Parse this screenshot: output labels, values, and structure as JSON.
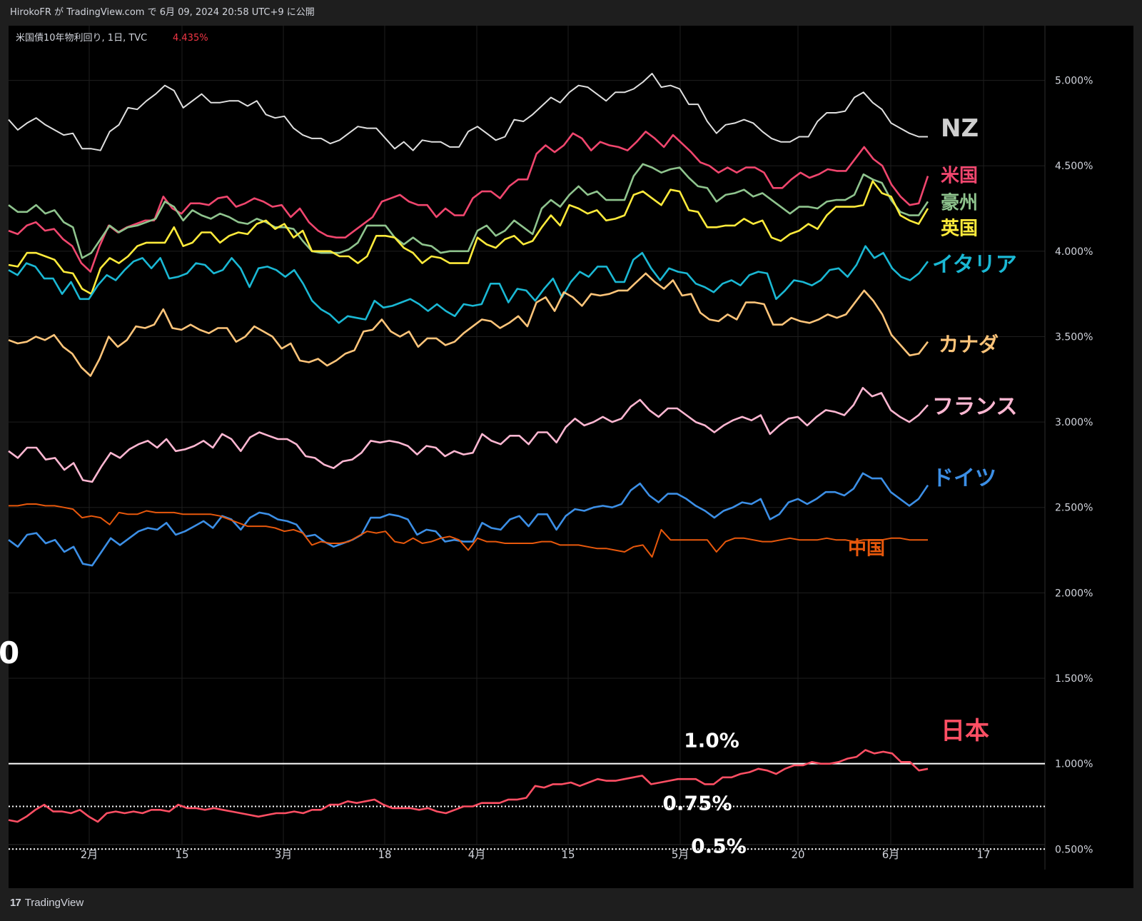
{
  "header": {
    "publisher_line": "HirokoFR が TradingView.com で 6月 09, 2024 20:58 UTC+9 に公開"
  },
  "chart_info": {
    "symbol_text": "米国債10年物利回り, 1日, TVC",
    "last_value": "4.435%"
  },
  "brand": {
    "logo": "17",
    "name": "TradingView"
  },
  "colors": {
    "background": "#000000",
    "grid": "#1f1f1f",
    "axis_text": "#d1d4dc"
  },
  "chart_data": {
    "type": "line",
    "ylim": [
      0.38,
      5.32
    ],
    "y_ticks": [
      "5.000%",
      "4.500%",
      "4.000%",
      "3.500%",
      "3.000%",
      "2.500%",
      "2.000%",
      "1.500%",
      "1.000%",
      "0.500%"
    ],
    "x_ticks": [
      "2月",
      "15",
      "3月",
      "18",
      "4月",
      "15",
      "5月",
      "20",
      "6月",
      "17"
    ],
    "reference_lines": [
      {
        "value": 1.0,
        "label": "1.0%",
        "style": "solid"
      },
      {
        "value": 0.75,
        "label": "0.75%",
        "style": "dotted"
      },
      {
        "value": 0.5,
        "label": "0.5%",
        "style": "dotted"
      }
    ],
    "left_edge_text": "0",
    "series": [
      {
        "name": "NZ",
        "color": "#e0e0e0",
        "label_color": "#cfcfcf",
        "values": [
          4.77,
          4.71,
          4.75,
          4.78,
          4.74,
          4.71,
          4.68,
          4.69,
          4.6,
          4.6,
          4.59,
          4.7,
          4.74,
          4.84,
          4.83,
          4.88,
          4.92,
          4.97,
          4.94,
          4.84,
          4.88,
          4.92,
          4.87,
          4.87,
          4.88,
          4.88,
          4.85,
          4.88,
          4.8,
          4.78,
          4.79,
          4.72,
          4.68,
          4.66,
          4.66,
          4.63,
          4.65,
          4.69,
          4.73,
          4.72,
          4.72,
          4.66,
          4.6,
          4.64,
          4.59,
          4.65,
          4.64,
          4.64,
          4.61,
          4.61,
          4.7,
          4.73,
          4.69,
          4.65,
          4.67,
          4.77,
          4.76,
          4.8,
          4.85,
          4.9,
          4.87,
          4.93,
          4.97,
          4.96,
          4.92,
          4.88,
          4.93,
          4.93,
          4.95,
          4.99,
          5.04,
          4.96,
          4.97,
          4.95,
          4.86,
          4.86,
          4.76,
          4.69,
          4.74,
          4.75,
          4.77,
          4.75,
          4.7,
          4.66,
          4.64,
          4.64,
          4.67,
          4.67,
          4.76,
          4.81,
          4.81,
          4.82,
          4.9,
          4.93,
          4.87,
          4.83,
          4.75,
          4.72,
          4.69,
          4.67,
          4.67
        ]
      },
      {
        "name": "米国",
        "color": "#f0466e",
        "label_color": "#f0466e",
        "values": [
          4.12,
          4.1,
          4.15,
          4.17,
          4.12,
          4.13,
          4.07,
          4.03,
          3.93,
          3.88,
          4.03,
          4.15,
          4.11,
          4.14,
          4.16,
          4.18,
          4.18,
          4.32,
          4.25,
          4.22,
          4.28,
          4.28,
          4.27,
          4.31,
          4.32,
          4.26,
          4.28,
          4.31,
          4.29,
          4.26,
          4.27,
          4.2,
          4.25,
          4.17,
          4.12,
          4.09,
          4.08,
          4.08,
          4.12,
          4.16,
          4.2,
          4.29,
          4.31,
          4.33,
          4.29,
          4.27,
          4.27,
          4.2,
          4.25,
          4.21,
          4.21,
          4.31,
          4.35,
          4.35,
          4.31,
          4.38,
          4.42,
          4.42,
          4.57,
          4.62,
          4.58,
          4.62,
          4.69,
          4.66,
          4.59,
          4.64,
          4.62,
          4.61,
          4.59,
          4.64,
          4.7,
          4.66,
          4.61,
          4.68,
          4.63,
          4.58,
          4.52,
          4.5,
          4.46,
          4.49,
          4.46,
          4.49,
          4.49,
          4.46,
          4.37,
          4.37,
          4.42,
          4.46,
          4.43,
          4.45,
          4.48,
          4.47,
          4.47,
          4.54,
          4.61,
          4.54,
          4.5,
          4.39,
          4.32,
          4.27,
          4.28,
          4.44
        ]
      },
      {
        "name": "豪州",
        "color": "#8fc48e",
        "label_color": "#8fc48e",
        "values": [
          4.27,
          4.23,
          4.23,
          4.27,
          4.22,
          4.24,
          4.17,
          4.14,
          3.96,
          3.99,
          4.07,
          4.15,
          4.11,
          4.14,
          4.15,
          4.17,
          4.19,
          4.29,
          4.26,
          4.18,
          4.24,
          4.21,
          4.19,
          4.22,
          4.2,
          4.17,
          4.16,
          4.19,
          4.17,
          4.14,
          4.14,
          4.13,
          4.06,
          4.0,
          3.99,
          3.99,
          3.99,
          4.01,
          4.05,
          4.15,
          4.15,
          4.15,
          4.08,
          4.04,
          4.08,
          4.04,
          4.03,
          3.99,
          4.0,
          4.0,
          4.0,
          4.12,
          4.15,
          4.09,
          4.12,
          4.18,
          4.14,
          4.1,
          4.25,
          4.3,
          4.26,
          4.33,
          4.38,
          4.33,
          4.35,
          4.3,
          4.3,
          4.3,
          4.44,
          4.51,
          4.49,
          4.46,
          4.48,
          4.49,
          4.43,
          4.38,
          4.37,
          4.29,
          4.33,
          4.34,
          4.36,
          4.32,
          4.34,
          4.3,
          4.26,
          4.22,
          4.26,
          4.26,
          4.25,
          4.29,
          4.3,
          4.3,
          4.33,
          4.45,
          4.42,
          4.4,
          4.3,
          4.23,
          4.21,
          4.21,
          4.29
        ]
      },
      {
        "name": "英国",
        "color": "#ffeb3b",
        "label_color": "#ffeb3b",
        "values": [
          3.92,
          3.91,
          3.99,
          3.99,
          3.97,
          3.95,
          3.88,
          3.87,
          3.78,
          3.75,
          3.9,
          3.96,
          3.93,
          3.97,
          4.03,
          4.05,
          4.05,
          4.05,
          4.14,
          4.03,
          4.05,
          4.11,
          4.11,
          4.05,
          4.09,
          4.11,
          4.1,
          4.16,
          4.18,
          4.13,
          4.16,
          4.08,
          4.12,
          4.0,
          4.0,
          4.0,
          3.97,
          3.97,
          3.93,
          3.97,
          4.09,
          4.09,
          4.08,
          4.02,
          3.99,
          3.93,
          3.97,
          3.96,
          3.93,
          3.93,
          3.93,
          4.08,
          4.04,
          4.02,
          4.07,
          4.09,
          4.04,
          4.06,
          4.14,
          4.21,
          4.15,
          4.27,
          4.25,
          4.22,
          4.24,
          4.18,
          4.19,
          4.21,
          4.33,
          4.35,
          4.31,
          4.27,
          4.36,
          4.35,
          4.24,
          4.23,
          4.14,
          4.14,
          4.15,
          4.15,
          4.19,
          4.16,
          4.18,
          4.08,
          4.06,
          4.1,
          4.12,
          4.16,
          4.13,
          4.21,
          4.26,
          4.26,
          4.26,
          4.27,
          4.41,
          4.34,
          4.32,
          4.21,
          4.18,
          4.16,
          4.25
        ]
      },
      {
        "name": "イタリア",
        "color": "#1ab8d4",
        "label_color": "#1ab8d4",
        "values": [
          3.89,
          3.86,
          3.93,
          3.91,
          3.84,
          3.84,
          3.75,
          3.82,
          3.72,
          3.72,
          3.8,
          3.86,
          3.83,
          3.89,
          3.94,
          3.96,
          3.9,
          3.96,
          3.84,
          3.85,
          3.87,
          3.93,
          3.92,
          3.87,
          3.89,
          3.96,
          3.9,
          3.79,
          3.9,
          3.91,
          3.89,
          3.85,
          3.89,
          3.81,
          3.71,
          3.66,
          3.63,
          3.58,
          3.62,
          3.61,
          3.6,
          3.71,
          3.67,
          3.68,
          3.7,
          3.72,
          3.69,
          3.65,
          3.69,
          3.65,
          3.62,
          3.69,
          3.68,
          3.69,
          3.81,
          3.81,
          3.7,
          3.78,
          3.77,
          3.71,
          3.78,
          3.84,
          3.73,
          3.82,
          3.88,
          3.85,
          3.91,
          3.91,
          3.82,
          3.82,
          3.95,
          3.99,
          3.9,
          3.83,
          3.9,
          3.88,
          3.87,
          3.81,
          3.79,
          3.76,
          3.81,
          3.83,
          3.8,
          3.86,
          3.88,
          3.87,
          3.72,
          3.77,
          3.83,
          3.82,
          3.8,
          3.83,
          3.89,
          3.9,
          3.85,
          3.92,
          4.03,
          3.96,
          3.99,
          3.9,
          3.85,
          3.83,
          3.87,
          3.94
        ]
      },
      {
        "name": "カナダ",
        "color": "#ffc57a",
        "label_color": "#ffc57a",
        "values": [
          3.48,
          3.46,
          3.47,
          3.5,
          3.48,
          3.51,
          3.44,
          3.4,
          3.32,
          3.27,
          3.37,
          3.5,
          3.44,
          3.48,
          3.56,
          3.55,
          3.57,
          3.66,
          3.55,
          3.54,
          3.57,
          3.54,
          3.52,
          3.55,
          3.55,
          3.47,
          3.5,
          3.56,
          3.53,
          3.5,
          3.43,
          3.46,
          3.36,
          3.35,
          3.37,
          3.33,
          3.36,
          3.4,
          3.42,
          3.53,
          3.54,
          3.6,
          3.53,
          3.5,
          3.53,
          3.44,
          3.49,
          3.49,
          3.45,
          3.47,
          3.52,
          3.56,
          3.6,
          3.59,
          3.55,
          3.58,
          3.62,
          3.56,
          3.7,
          3.73,
          3.65,
          3.76,
          3.73,
          3.68,
          3.75,
          3.74,
          3.75,
          3.77,
          3.77,
          3.82,
          3.87,
          3.82,
          3.78,
          3.83,
          3.74,
          3.75,
          3.64,
          3.6,
          3.59,
          3.63,
          3.6,
          3.7,
          3.7,
          3.69,
          3.57,
          3.57,
          3.61,
          3.59,
          3.58,
          3.6,
          3.63,
          3.61,
          3.63,
          3.7,
          3.77,
          3.71,
          3.63,
          3.51,
          3.45,
          3.39,
          3.4,
          3.47
        ]
      },
      {
        "name": "フランス",
        "color": "#ffb7d2",
        "label_color": "#ffb7d2",
        "values": [
          2.83,
          2.79,
          2.85,
          2.85,
          2.78,
          2.79,
          2.72,
          2.76,
          2.66,
          2.65,
          2.74,
          2.82,
          2.79,
          2.84,
          2.87,
          2.89,
          2.85,
          2.9,
          2.83,
          2.84,
          2.86,
          2.89,
          2.85,
          2.93,
          2.9,
          2.83,
          2.91,
          2.94,
          2.92,
          2.9,
          2.9,
          2.87,
          2.8,
          2.79,
          2.75,
          2.73,
          2.77,
          2.78,
          2.82,
          2.89,
          2.88,
          2.89,
          2.88,
          2.86,
          2.81,
          2.86,
          2.85,
          2.8,
          2.83,
          2.81,
          2.82,
          2.93,
          2.89,
          2.87,
          2.92,
          2.92,
          2.87,
          2.94,
          2.94,
          2.88,
          2.97,
          3.02,
          2.98,
          3.0,
          3.03,
          3.0,
          3.02,
          3.09,
          3.13,
          3.07,
          3.03,
          3.08,
          3.08,
          3.04,
          3.0,
          2.98,
          2.94,
          2.98,
          3.01,
          3.03,
          3.01,
          3.04,
          2.93,
          2.98,
          3.02,
          3.03,
          2.98,
          3.03,
          3.07,
          3.06,
          3.04,
          3.1,
          3.2,
          3.15,
          3.17,
          3.07,
          3.03,
          3.0,
          3.04,
          3.1
        ]
      },
      {
        "name": "ドイツ",
        "color": "#3c8fe6",
        "label_color": "#3c8fe6",
        "values": [
          2.31,
          2.27,
          2.34,
          2.35,
          2.29,
          2.31,
          2.24,
          2.27,
          2.17,
          2.16,
          2.24,
          2.32,
          2.28,
          2.32,
          2.36,
          2.38,
          2.37,
          2.41,
          2.34,
          2.36,
          2.39,
          2.42,
          2.38,
          2.45,
          2.43,
          2.37,
          2.44,
          2.47,
          2.46,
          2.43,
          2.42,
          2.4,
          2.33,
          2.34,
          2.3,
          2.27,
          2.29,
          2.31,
          2.34,
          2.44,
          2.44,
          2.46,
          2.45,
          2.43,
          2.34,
          2.37,
          2.36,
          2.3,
          2.31,
          2.3,
          2.3,
          2.41,
          2.38,
          2.37,
          2.43,
          2.45,
          2.39,
          2.46,
          2.46,
          2.37,
          2.45,
          2.49,
          2.48,
          2.5,
          2.51,
          2.5,
          2.52,
          2.6,
          2.64,
          2.57,
          2.53,
          2.58,
          2.58,
          2.55,
          2.51,
          2.48,
          2.44,
          2.48,
          2.5,
          2.53,
          2.52,
          2.55,
          2.43,
          2.46,
          2.53,
          2.55,
          2.52,
          2.55,
          2.59,
          2.59,
          2.57,
          2.61,
          2.7,
          2.67,
          2.67,
          2.59,
          2.55,
          2.51,
          2.55,
          2.63
        ]
      },
      {
        "name": "中国",
        "color": "#e8580c",
        "label_color": "#e8580c",
        "values": [
          2.51,
          2.51,
          2.52,
          2.52,
          2.51,
          2.51,
          2.5,
          2.49,
          2.44,
          2.45,
          2.44,
          2.4,
          2.47,
          2.46,
          2.46,
          2.48,
          2.47,
          2.47,
          2.47,
          2.46,
          2.46,
          2.46,
          2.46,
          2.45,
          2.43,
          2.41,
          2.39,
          2.39,
          2.39,
          2.38,
          2.36,
          2.37,
          2.35,
          2.28,
          2.3,
          2.29,
          2.29,
          2.3,
          2.33,
          2.36,
          2.35,
          2.36,
          2.3,
          2.29,
          2.32,
          2.29,
          2.3,
          2.32,
          2.33,
          2.31,
          2.25,
          2.32,
          2.3,
          2.3,
          2.29,
          2.29,
          2.29,
          2.29,
          2.3,
          2.3,
          2.28,
          2.28,
          2.28,
          2.27,
          2.26,
          2.26,
          2.25,
          2.24,
          2.27,
          2.28,
          2.21,
          2.37,
          2.31,
          2.31,
          2.31,
          2.31,
          2.31,
          2.24,
          2.3,
          2.32,
          2.32,
          2.31,
          2.3,
          2.3,
          2.31,
          2.32,
          2.31,
          2.31,
          2.31,
          2.32,
          2.31,
          2.31,
          2.3,
          2.31,
          2.31,
          2.31,
          2.32,
          2.32,
          2.31,
          2.31,
          2.31
        ]
      },
      {
        "name": "日本",
        "color": "#ff4f64",
        "label_color": "#ff4f64",
        "values": [
          0.67,
          0.66,
          0.69,
          0.73,
          0.76,
          0.72,
          0.72,
          0.71,
          0.73,
          0.69,
          0.66,
          0.71,
          0.72,
          0.71,
          0.72,
          0.71,
          0.73,
          0.73,
          0.72,
          0.76,
          0.74,
          0.74,
          0.73,
          0.74,
          0.73,
          0.72,
          0.71,
          0.7,
          0.69,
          0.7,
          0.71,
          0.71,
          0.72,
          0.71,
          0.73,
          0.73,
          0.76,
          0.76,
          0.78,
          0.77,
          0.78,
          0.79,
          0.76,
          0.74,
          0.74,
          0.74,
          0.73,
          0.74,
          0.72,
          0.71,
          0.73,
          0.75,
          0.75,
          0.77,
          0.77,
          0.77,
          0.79,
          0.79,
          0.8,
          0.87,
          0.86,
          0.88,
          0.88,
          0.89,
          0.87,
          0.89,
          0.91,
          0.9,
          0.9,
          0.91,
          0.92,
          0.93,
          0.88,
          0.89,
          0.9,
          0.91,
          0.91,
          0.91,
          0.88,
          0.88,
          0.92,
          0.92,
          0.94,
          0.95,
          0.97,
          0.96,
          0.94,
          0.97,
          0.99,
          0.99,
          1.01,
          1.0,
          1.0,
          1.01,
          1.03,
          1.04,
          1.08,
          1.06,
          1.07,
          1.06,
          1.01,
          1.01,
          0.96,
          0.97
        ]
      }
    ]
  }
}
